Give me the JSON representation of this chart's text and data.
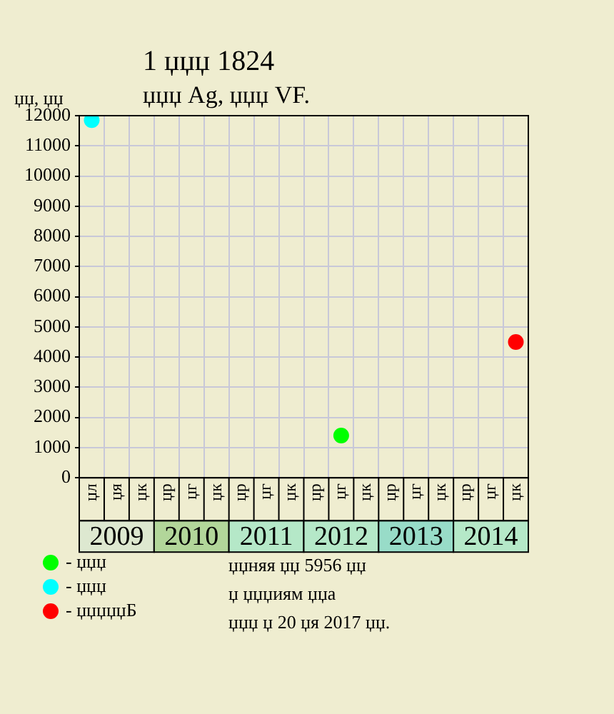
{
  "chart_data": {
    "type": "scatter",
    "title": "1 џџџ 1824",
    "subtitle": "џџџ Ag, џџџ VF.",
    "ylabel": "џџ, џџ",
    "categories": [
      "џл",
      "џя",
      "џк",
      "џр",
      "џг",
      "џк",
      "џр",
      "џг",
      "џк",
      "џр",
      "џг",
      "џк",
      "џр",
      "џг",
      "џк",
      "џр",
      "џг",
      "џк"
    ],
    "series": [
      {
        "name": "- џџџ",
        "color": "#00ff00",
        "values": [
          null,
          null,
          null,
          null,
          null,
          null,
          null,
          null,
          null,
          null,
          1400,
          null,
          null,
          null,
          null,
          null,
          null,
          null
        ]
      },
      {
        "name": "- џџџ",
        "color": "#00ffff",
        "values": [
          11850,
          null,
          null,
          null,
          null,
          null,
          null,
          null,
          null,
          null,
          null,
          null,
          null,
          null,
          null,
          null,
          null,
          null
        ]
      },
      {
        "name": "- џџџџџБ",
        "color": "#ff0000",
        "values": [
          null,
          null,
          null,
          null,
          null,
          null,
          null,
          null,
          null,
          null,
          null,
          null,
          null,
          null,
          null,
          null,
          null,
          4500
        ]
      }
    ],
    "ylim": [
      0,
      12000
    ],
    "yticks": [
      0,
      1000,
      2000,
      3000,
      4000,
      5000,
      6000,
      7000,
      8000,
      9000,
      10000,
      11000,
      12000
    ],
    "grid": true,
    "legend": "bottom left",
    "marker": "circle",
    "annotations": [
      "2009",
      "2010",
      "2011",
      "2012",
      "2013",
      "2014",
      "џџняя џџ 5956 џџ",
      "џ џџџиям џџа",
      "џџџ џ 20 џя 2017 џџ."
    ]
  }
}
